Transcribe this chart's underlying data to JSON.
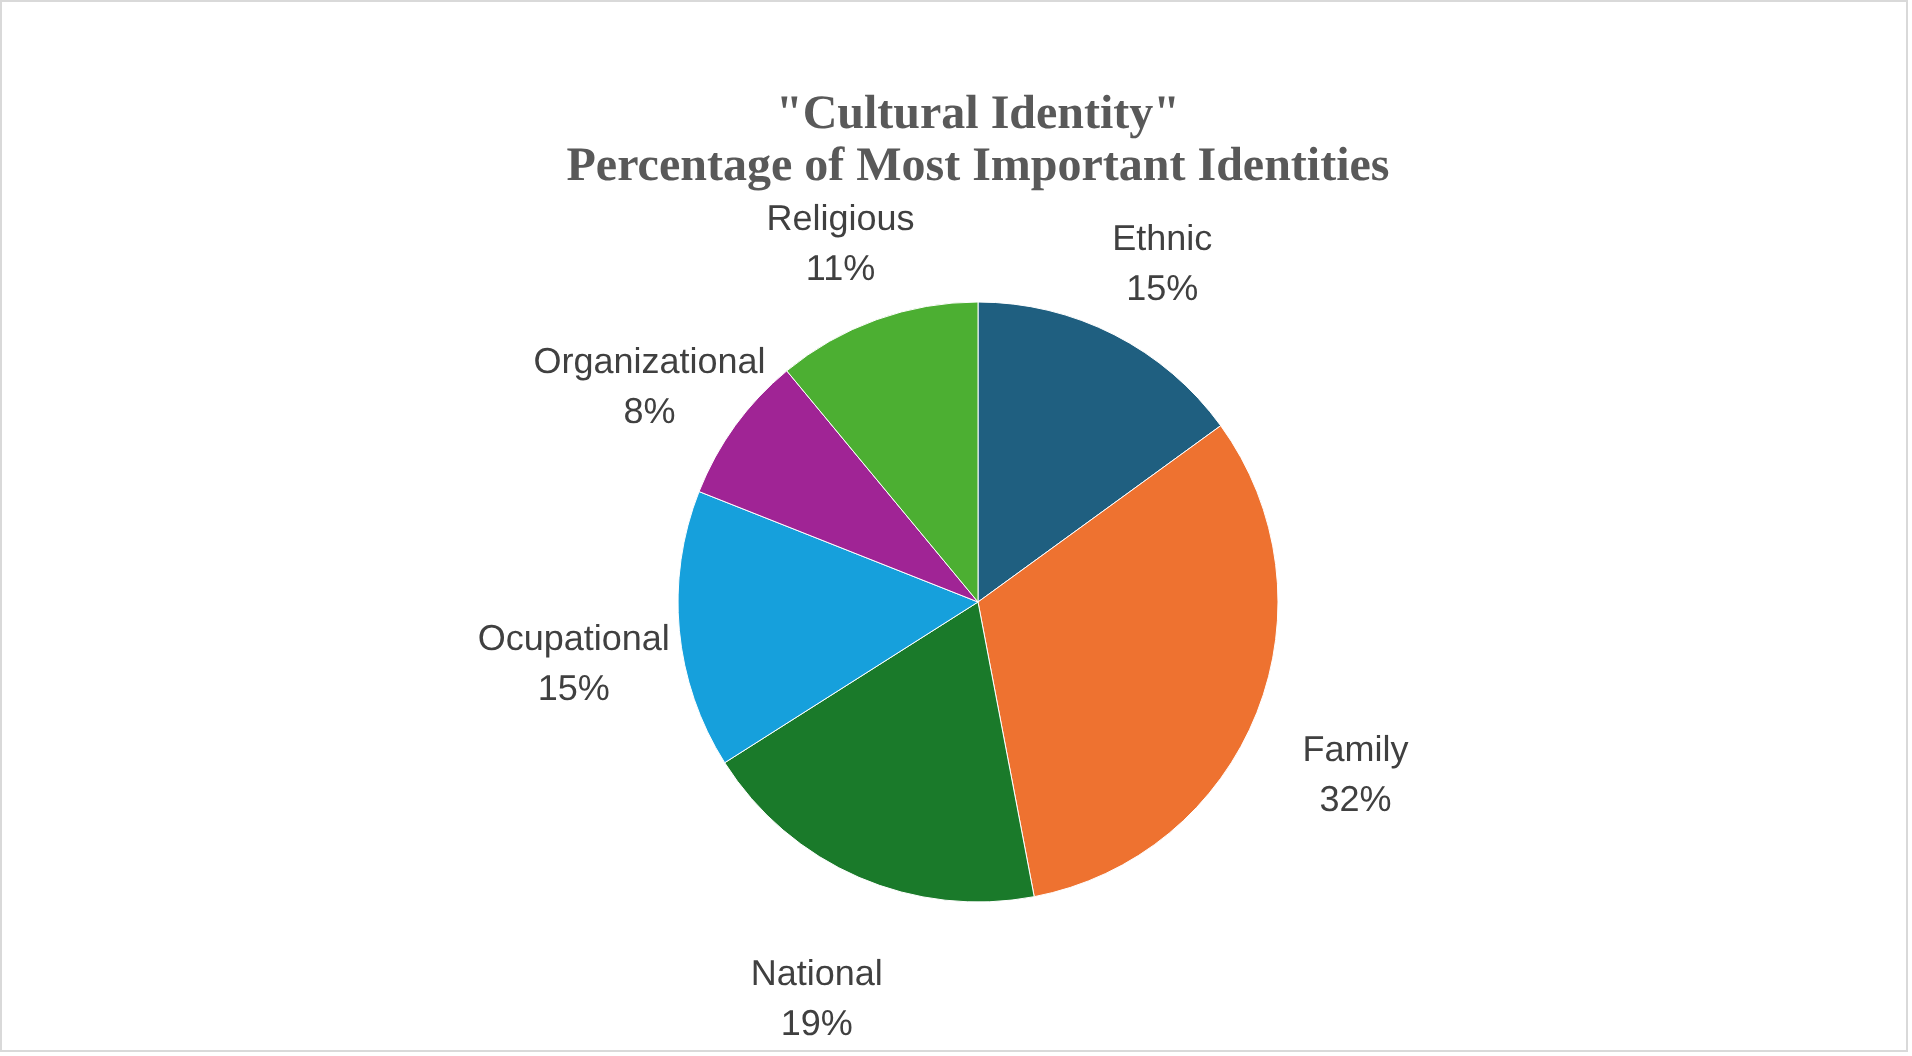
{
  "chart_data": {
    "type": "pie",
    "title": "\"Cultural Identity\"",
    "subtitle": "Percentage of Most Important Identities",
    "categories": [
      "Ethnic",
      "Family",
      "National",
      "Ocupational",
      "Organizational",
      "Religious"
    ],
    "values": [
      15,
      32,
      19,
      15,
      8,
      11
    ],
    "value_labels": [
      "15%",
      "32%",
      "19%",
      "15%",
      "8%",
      "11%"
    ],
    "colors": [
      "#1f5f80",
      "#ee7230",
      "#1a7a2a",
      "#16a0dc",
      "#a02495",
      "#4caf32"
    ]
  }
}
